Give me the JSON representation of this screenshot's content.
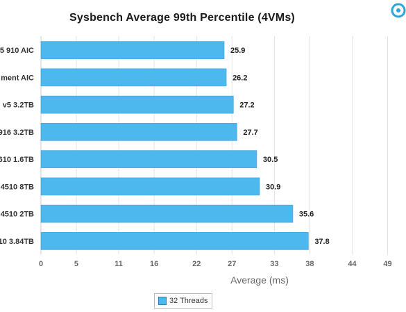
{
  "chart_data": {
    "type": "bar",
    "orientation": "horizontal",
    "title": "Sysbench Average 99th Percentile (4VMs)",
    "xlabel": "Average (ms)",
    "ylabel": "",
    "categories": [
      "5 910 AIC",
      "ment AIC",
      "v5 3.2TB",
      "916 3.2TB",
      "610 1.6TB",
      "4510 8TB",
      "4510 2TB",
      "10 3.84TB"
    ],
    "series": [
      {
        "name": "32 Threads",
        "values": [
          25.9,
          26.2,
          27.2,
          27.7,
          30.5,
          30.9,
          35.6,
          37.8
        ],
        "color": "#4db8ee"
      }
    ],
    "data_labels": [
      "25.9",
      "26.2",
      "27.2",
      "27.7",
      "30.5",
      "30.9",
      "35.6",
      "37.8"
    ],
    "x_ticks": [
      "0",
      "5",
      "11",
      "16",
      "22",
      "27",
      "33",
      "38",
      "44",
      "49"
    ],
    "xlim": [
      0,
      51.6
    ],
    "grid": "vertical",
    "legend": "bottom"
  },
  "colors": {
    "bar": "#4db8ee",
    "bar_border": "#3a9fd6",
    "grid": "#e3e3e3",
    "axis_label": "#666666",
    "logo": "#2aa5e0"
  },
  "icons": {
    "logo": "logo-icon"
  }
}
